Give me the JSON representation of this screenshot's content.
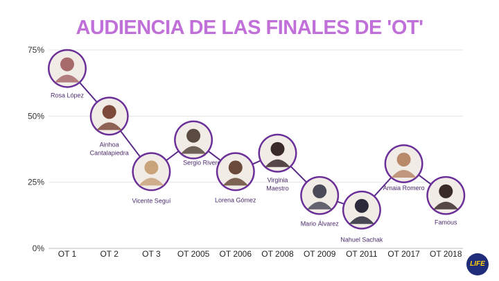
{
  "title": "AUDIENCIA DE LAS FINALES DE 'OT'",
  "logo": {
    "text": "LIFE",
    "background": "#1f2c7a",
    "color": "#ffd200"
  },
  "colors": {
    "title": "#c070d8",
    "line": "#5a2a88",
    "avatar_ring": "#6b2f99",
    "grid": "#e3e3e3"
  },
  "chart_data": {
    "type": "line",
    "title": "AUDIENCIA DE LAS FINALES DE 'OT'",
    "xlabel": "",
    "ylabel": "",
    "ylim": [
      0,
      75
    ],
    "yticks": [
      "0%",
      "25%",
      "50%",
      "75%"
    ],
    "ytick_values": [
      0,
      25,
      50,
      75
    ],
    "grid": true,
    "categories": [
      "OT 1",
      "OT 2",
      "OT 3",
      "OT 2005",
      "OT 2006",
      "OT 2008",
      "OT 2009",
      "OT 2011",
      "OT 2017",
      "OT 2018"
    ],
    "series": [
      {
        "values": [
          68.0,
          50.0,
          29.0,
          41.0,
          29.0,
          36.0,
          20.0,
          14.5,
          32.0,
          20.0
        ],
        "point_labels": [
          "Rosa López",
          "Ainhoa Cantalapiedra",
          "Vicente Seguí",
          "Sergio Rivero",
          "Lorena Gómez",
          "Virginia Maestro",
          "Mario Álvarez",
          "Nahuel Sachak",
          "Amaia Romero",
          "Famous"
        ]
      }
    ]
  }
}
